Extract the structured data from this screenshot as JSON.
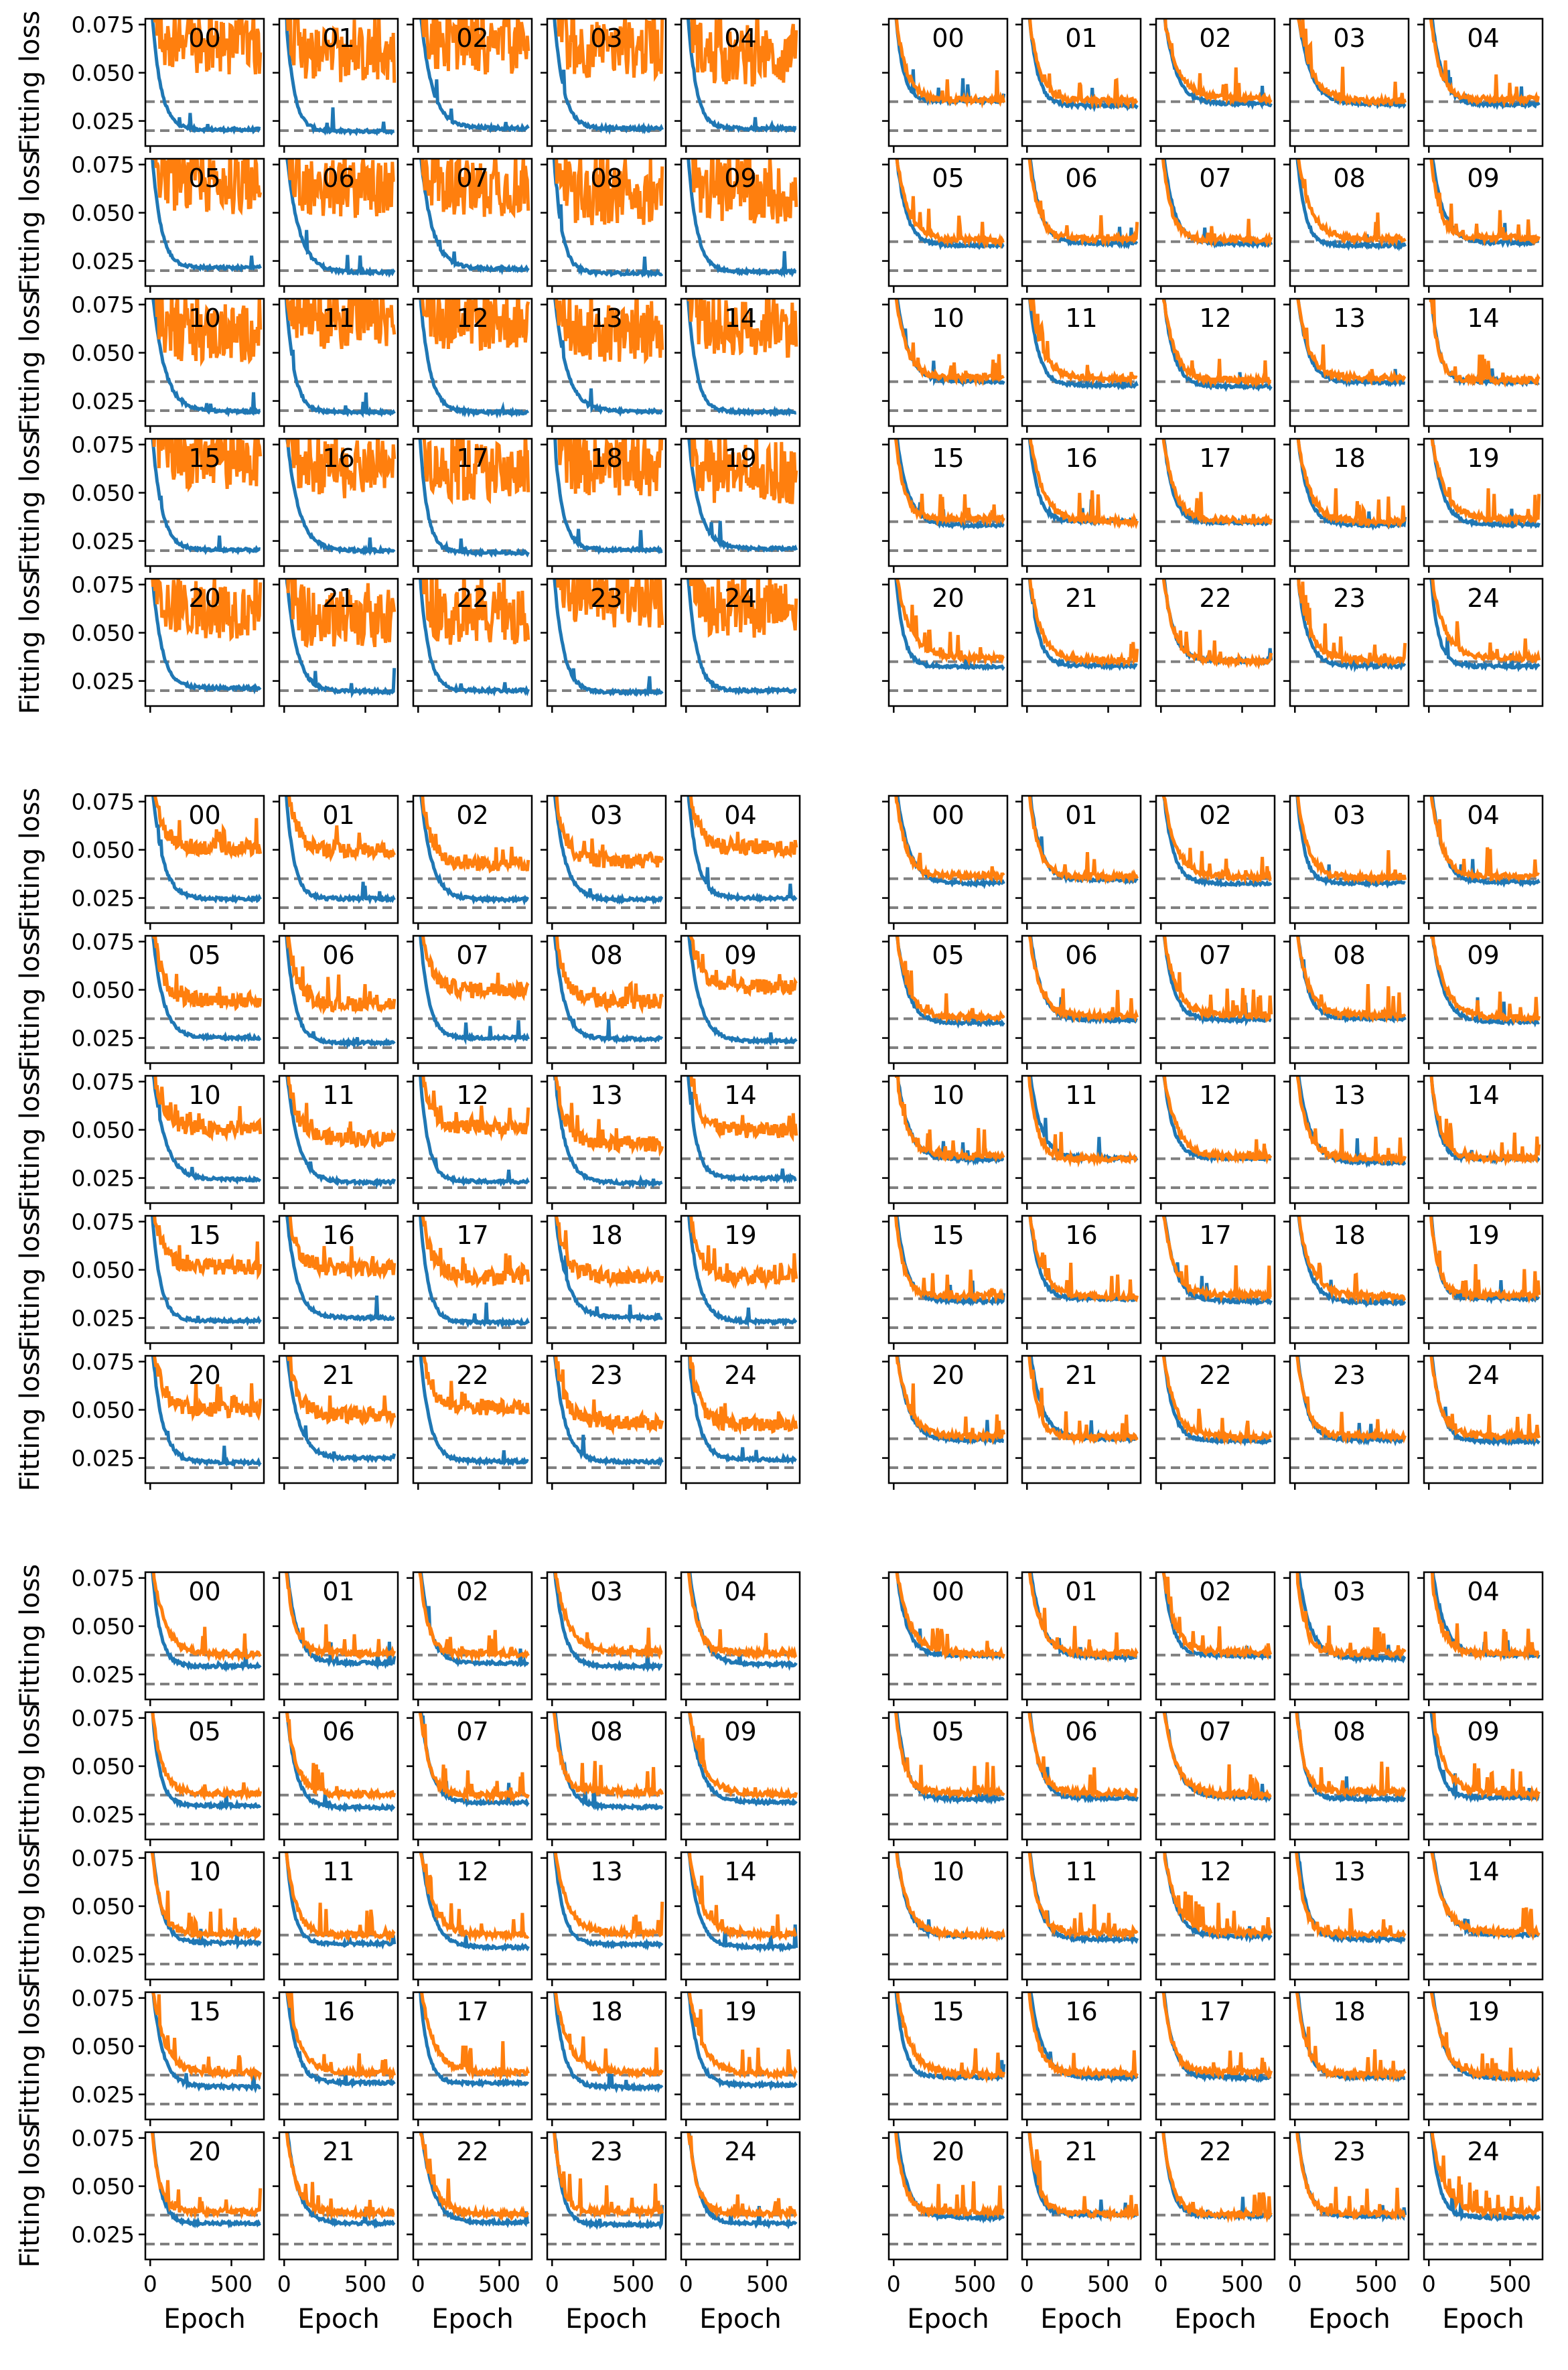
{
  "chart_data": {
    "type": "line",
    "layout": "6 blocks (3 rows x 2 columns), each a 5x5 grid of small line plots numbered 00-24",
    "xlabel": "Epoch",
    "ylabel": "Fitting loss",
    "xlim": [
      -30,
      700
    ],
    "ylim": [
      0.012,
      0.078
    ],
    "x_ticks": [
      0,
      500
    ],
    "x_tick_labels": [
      "0",
      "500"
    ],
    "y_ticks": [
      0.025,
      0.05,
      0.075
    ],
    "y_tick_labels": [
      "0.025",
      "0.050",
      "0.075"
    ],
    "reference_lines": [
      0.02,
      0.035
    ],
    "reference_line_style": "dashed",
    "colors": {
      "series_a": "#1f77b4",
      "series_b": "#ff7f0e",
      "reference": "#808080"
    },
    "panel_labels": [
      "00",
      "01",
      "02",
      "03",
      "04",
      "05",
      "06",
      "07",
      "08",
      "09",
      "10",
      "11",
      "12",
      "13",
      "14",
      "15",
      "16",
      "17",
      "18",
      "19",
      "20",
      "21",
      "22",
      "23",
      "24"
    ],
    "blocks": [
      {
        "position": "top-left",
        "series_a_final": 0.02,
        "series_b_final": 0.062,
        "series_b_behavior": "highly volatile, mostly above 0.05"
      },
      {
        "position": "top-right",
        "series_a_final": 0.034,
        "series_b_final": 0.036,
        "series_b_behavior": "near reference 0.035 with spikes"
      },
      {
        "position": "middle-left",
        "series_a_final": 0.024,
        "series_b_final": 0.047,
        "series_b_behavior": "moderately noisy, 0.04-0.06"
      },
      {
        "position": "middle-right",
        "series_a_final": 0.034,
        "series_b_final": 0.036,
        "series_b_behavior": "near reference 0.035 with spikes"
      },
      {
        "position": "bottom-left",
        "series_a_final": 0.03,
        "series_b_final": 0.036,
        "series_b_behavior": "near reference 0.035 with spikes"
      },
      {
        "position": "bottom-right",
        "series_a_final": 0.034,
        "series_b_final": 0.036,
        "series_b_behavior": "near reference 0.035 with spikes"
      }
    ]
  }
}
